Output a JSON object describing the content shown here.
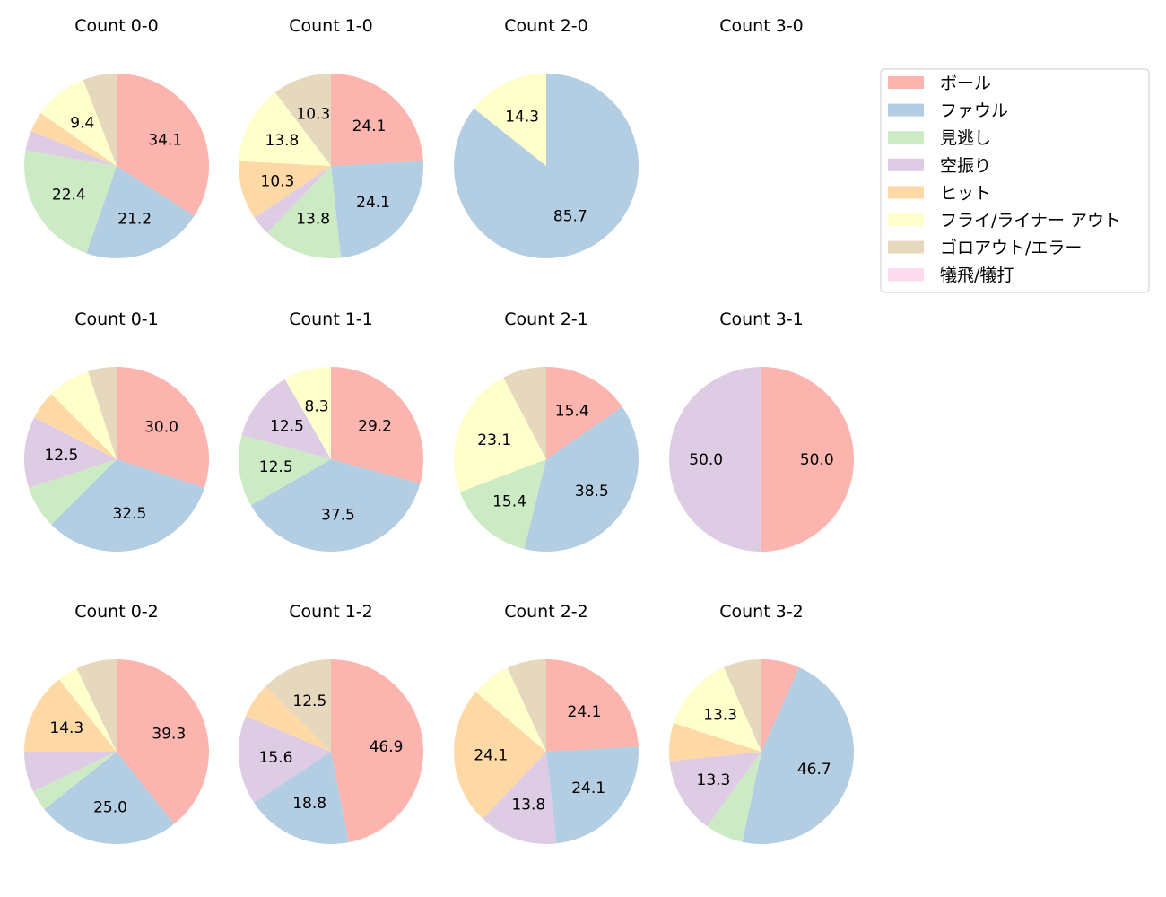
{
  "chart_data": {
    "type": "pie",
    "categories": [
      "ボール",
      "ファウル",
      "見逃し",
      "空振り",
      "ヒット",
      "フライ/ライナー アウト",
      "ゴロアウト/エラー",
      "犠飛/犠打"
    ],
    "colors": [
      "#fbb4ae",
      "#b3cde3",
      "#ccebc5",
      "#decbe4",
      "#fed9a6",
      "#ffffcc",
      "#e5d8bd",
      "#fddaec"
    ],
    "legend_placement": "upper right",
    "start_angle": "top",
    "direction": "clockwise",
    "label_min_percent": 8,
    "pies": [
      {
        "title": "Count 0-0",
        "values": [
          34.1,
          21.2,
          22.4,
          3.5,
          3.5,
          9.4,
          5.9,
          0
        ]
      },
      {
        "title": "Count 1-0",
        "values": [
          24.1,
          24.1,
          13.8,
          3.4,
          10.3,
          13.8,
          10.3,
          0
        ]
      },
      {
        "title": "Count 2-0",
        "values": [
          0,
          85.7,
          0,
          0,
          0,
          14.3,
          0,
          0
        ]
      },
      {
        "title": "Count 3-0",
        "values": [
          0,
          0,
          0,
          0,
          0,
          0,
          0,
          0
        ]
      },
      {
        "title": "Count 0-1",
        "values": [
          30.0,
          32.5,
          7.5,
          12.5,
          5.0,
          7.5,
          5.0,
          0
        ]
      },
      {
        "title": "Count 1-1",
        "values": [
          29.2,
          37.5,
          12.5,
          12.5,
          0,
          8.3,
          0,
          0
        ]
      },
      {
        "title": "Count 2-1",
        "values": [
          15.4,
          38.5,
          15.4,
          0,
          0,
          23.1,
          7.7,
          0
        ]
      },
      {
        "title": "Count 3-1",
        "values": [
          50.0,
          0,
          0,
          50.0,
          0,
          0,
          0,
          0
        ]
      },
      {
        "title": "Count 0-2",
        "values": [
          39.3,
          25.0,
          3.6,
          7.1,
          14.3,
          3.6,
          7.1,
          0
        ]
      },
      {
        "title": "Count 1-2",
        "values": [
          46.9,
          18.8,
          0,
          15.6,
          6.2,
          0,
          12.5,
          0
        ]
      },
      {
        "title": "Count 2-2",
        "values": [
          24.1,
          24.1,
          0,
          13.8,
          24.1,
          6.9,
          6.9,
          0
        ]
      },
      {
        "title": "Count 3-2",
        "values": [
          6.7,
          46.7,
          6.7,
          13.3,
          6.7,
          13.3,
          6.7,
          0
        ]
      }
    ]
  }
}
